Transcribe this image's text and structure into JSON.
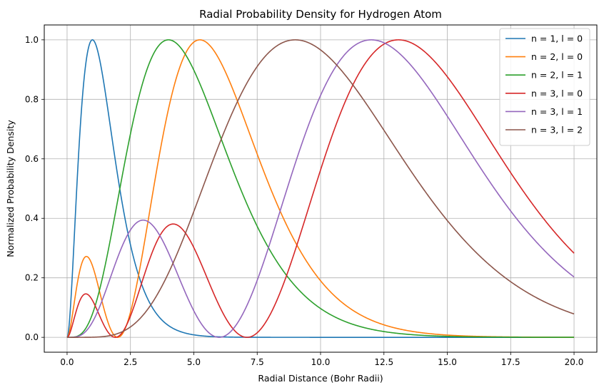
{
  "chart_data": {
    "type": "line",
    "title": "Radial Probability Density for Hydrogen Atom",
    "xlabel": "Radial Distance (Bohr Radii)",
    "ylabel": "Normalized Probability Density",
    "xlim": [
      -0.9,
      20.9
    ],
    "ylim": [
      -0.05,
      1.05
    ],
    "xticks": [
      0,
      2.5,
      5,
      7.5,
      10,
      12.5,
      15,
      17.5,
      20
    ],
    "xtick_labels": [
      "0.0",
      "2.5",
      "5.0",
      "7.5",
      "10.0",
      "12.5",
      "15.0",
      "17.5",
      "20.0"
    ],
    "yticks": [
      0,
      0.2,
      0.4,
      0.6,
      0.8,
      1.0
    ],
    "ytick_labels": [
      "0.0",
      "0.2",
      "0.4",
      "0.6",
      "0.8",
      "1.0"
    ],
    "grid": true,
    "legend_position": "top-right",
    "x_range": [
      0,
      20
    ],
    "series": [
      {
        "name": "n = 1, l = 0",
        "n": 1,
        "l": 0,
        "color": "#1f77b4"
      },
      {
        "name": "n = 2, l = 0",
        "n": 2,
        "l": 0,
        "color": "#ff7f0e"
      },
      {
        "name": "n = 2, l = 1",
        "n": 2,
        "l": 1,
        "color": "#2ca02c"
      },
      {
        "name": "n = 3, l = 0",
        "n": 3,
        "l": 0,
        "color": "#d62728"
      },
      {
        "name": "n = 3, l = 1",
        "n": 3,
        "l": 1,
        "color": "#9467bd"
      },
      {
        "name": "n = 3, l = 2",
        "n": 3,
        "l": 2,
        "color": "#8c564b"
      }
    ]
  }
}
